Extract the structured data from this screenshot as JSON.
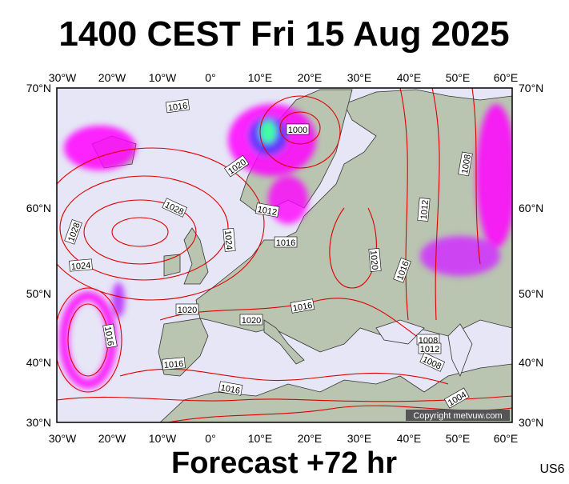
{
  "header": {
    "title": "1400 CEST Fri 15 Aug 2025"
  },
  "map": {
    "lon_labels": [
      "30°W",
      "20°W",
      "10°W",
      "0°",
      "10°E",
      "20°E",
      "30°E",
      "40°E",
      "50°E",
      "60°E"
    ],
    "lat_labels": [
      "70°N",
      "60°N",
      "50°N",
      "40°N",
      "30°N"
    ],
    "isobar_labels": [
      "1016",
      "1000",
      "1020",
      "1028",
      "1012",
      "1028",
      "1024",
      "1016",
      "1024",
      "1020",
      "1016",
      "1012",
      "1008",
      "1020",
      "1016",
      "1020",
      "1016",
      "1016",
      "1008",
      "1012",
      "1008",
      "1016",
      "1004"
    ],
    "copyright": "Copyright metvuw.com"
  },
  "footer": {
    "forecast": "Forecast +72 hr",
    "code": "US6"
  }
}
